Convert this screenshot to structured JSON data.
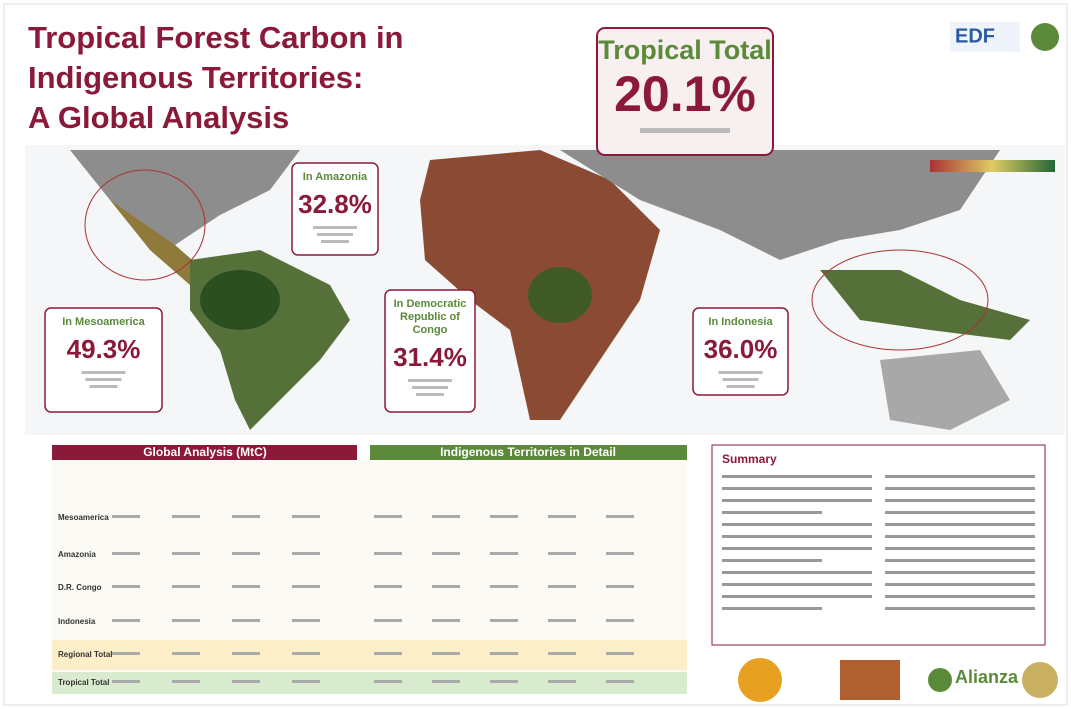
{
  "header": {
    "title_lines": [
      "Tropical Forest Carbon in",
      "Indigenous Territories:",
      "A Global Analysis"
    ]
  },
  "tropical_total": {
    "label": "Tropical Total",
    "value": "20.1%"
  },
  "callouts": [
    {
      "region": [
        "In Amazonia"
      ],
      "value": "32.8%"
    },
    {
      "region": [
        "In Mesoamerica"
      ],
      "value": "49.3%"
    },
    {
      "region": [
        "In Democratic",
        "Republic of",
        "Congo"
      ],
      "value": "31.4%"
    },
    {
      "region": [
        "In Indonesia"
      ],
      "value": "36.0%"
    }
  ],
  "tables": [
    {
      "title": "Global Analysis (MtC)",
      "rows": [
        "Mesoamerica",
        "Amazonia",
        "D.R. Congo",
        "Indonesia",
        "Regional Total",
        "Tropical Total"
      ]
    },
    {
      "title": "Indigenous Territories in Detail"
    }
  ],
  "summary": {
    "title": "Summary"
  },
  "logos": [
    "EDF",
    "Alianza"
  ]
}
